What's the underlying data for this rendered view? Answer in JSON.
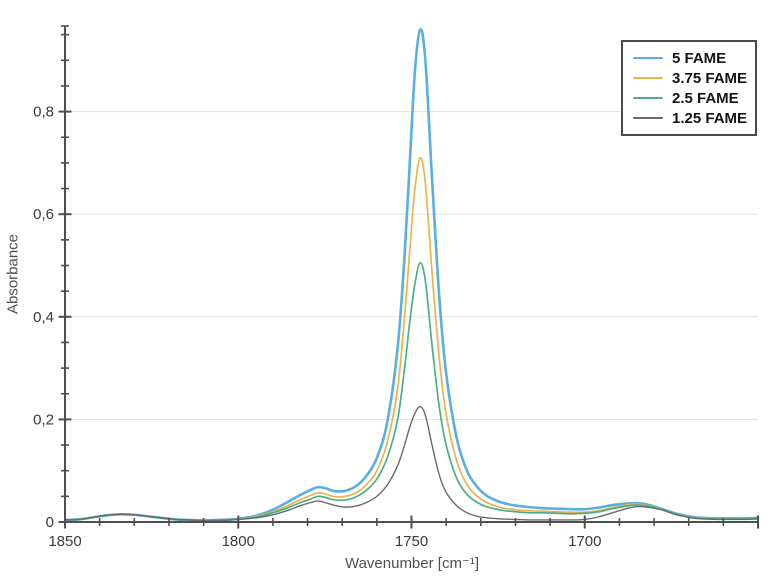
{
  "chart_data": {
    "type": "line",
    "title": "",
    "xlabel": "Wavenumber [cm⁻¹]",
    "ylabel": "Absorbance",
    "x_axis": {
      "min": 1650,
      "max": 1850,
      "reversed": true,
      "major_ticks": [
        1850,
        1800,
        1750,
        1700
      ],
      "major_tick_labels": [
        "1850",
        "1800",
        "1750",
        "1700"
      ],
      "minor_tick_step": 10,
      "end_tick": 1650
    },
    "y_axis": {
      "min": 0,
      "max": 0.965,
      "major_ticks": [
        0,
        0.2,
        0.4,
        0.6,
        0.8
      ],
      "major_tick_labels": [
        "0",
        "0,2",
        "0,4",
        "0,6",
        "0,8"
      ],
      "minor_tick_step": 0.05,
      "decimal_separator": ","
    },
    "grid": {
      "horizontal_major": true,
      "vertical": false,
      "color": "#e1e1e1"
    },
    "legend": {
      "position": "top-right",
      "bordered": true
    },
    "axis_color": "#4f4f4f",
    "background_color": "#ffffff",
    "x": [
      1850,
      1846,
      1842,
      1838,
      1834,
      1830,
      1826,
      1822,
      1818,
      1814,
      1810,
      1806,
      1802,
      1798,
      1794,
      1790,
      1786,
      1782,
      1779,
      1777,
      1775,
      1772,
      1769,
      1766,
      1763,
      1760,
      1757,
      1754,
      1752,
      1750.5,
      1749,
      1747.5,
      1746,
      1744,
      1742,
      1740,
      1737,
      1734,
      1731,
      1728,
      1724,
      1720,
      1716,
      1712,
      1708,
      1704,
      1700,
      1696,
      1692,
      1688,
      1685,
      1682,
      1678,
      1674,
      1670,
      1666,
      1662,
      1658,
      1654,
      1650
    ],
    "series": [
      {
        "name": "5 FAME",
        "color": "#5aafe0",
        "line_width": 2.6,
        "peak_value": 0.96,
        "peak_x": 1748,
        "values": [
          0.004,
          0.005,
          0.009,
          0.013,
          0.015,
          0.014,
          0.011,
          0.008,
          0.005,
          0.004,
          0.003,
          0.004,
          0.005,
          0.008,
          0.014,
          0.024,
          0.038,
          0.053,
          0.063,
          0.068,
          0.066,
          0.06,
          0.061,
          0.07,
          0.09,
          0.125,
          0.195,
          0.34,
          0.52,
          0.7,
          0.88,
          0.96,
          0.9,
          0.66,
          0.44,
          0.29,
          0.165,
          0.1,
          0.068,
          0.05,
          0.038,
          0.032,
          0.029,
          0.027,
          0.026,
          0.025,
          0.025,
          0.028,
          0.033,
          0.036,
          0.037,
          0.034,
          0.026,
          0.017,
          0.011,
          0.008,
          0.007,
          0.007,
          0.007,
          0.008
        ]
      },
      {
        "name": "3.75 FAME",
        "color": "#e8b450",
        "line_width": 1.7,
        "peak_value": 0.71,
        "peak_x": 1748,
        "values": [
          0.004,
          0.005,
          0.009,
          0.013,
          0.015,
          0.014,
          0.011,
          0.008,
          0.005,
          0.004,
          0.003,
          0.004,
          0.005,
          0.007,
          0.012,
          0.02,
          0.031,
          0.044,
          0.052,
          0.057,
          0.055,
          0.049,
          0.05,
          0.057,
          0.073,
          0.1,
          0.155,
          0.26,
          0.4,
          0.53,
          0.65,
          0.71,
          0.66,
          0.48,
          0.32,
          0.21,
          0.12,
          0.073,
          0.05,
          0.037,
          0.028,
          0.024,
          0.022,
          0.021,
          0.02,
          0.019,
          0.019,
          0.022,
          0.028,
          0.033,
          0.035,
          0.032,
          0.025,
          0.016,
          0.01,
          0.007,
          0.006,
          0.006,
          0.006,
          0.007
        ]
      },
      {
        "name": "2.5 FAME",
        "color": "#4daf85",
        "line_width": 1.7,
        "peak_value": 0.505,
        "peak_x": 1748,
        "values": [
          0.004,
          0.005,
          0.009,
          0.013,
          0.015,
          0.014,
          0.011,
          0.008,
          0.005,
          0.004,
          0.003,
          0.004,
          0.005,
          0.007,
          0.011,
          0.018,
          0.027,
          0.038,
          0.045,
          0.05,
          0.048,
          0.043,
          0.043,
          0.049,
          0.062,
          0.084,
          0.125,
          0.2,
          0.3,
          0.39,
          0.465,
          0.505,
          0.47,
          0.34,
          0.225,
          0.15,
          0.086,
          0.054,
          0.038,
          0.029,
          0.023,
          0.02,
          0.018,
          0.018,
          0.017,
          0.016,
          0.017,
          0.02,
          0.026,
          0.031,
          0.033,
          0.031,
          0.025,
          0.016,
          0.01,
          0.007,
          0.006,
          0.006,
          0.006,
          0.007
        ]
      },
      {
        "name": "1.25 FAME",
        "color": "#6a6a6a",
        "line_width": 1.4,
        "peak_value": 0.225,
        "peak_x": 1748,
        "values": [
          0.004,
          0.005,
          0.009,
          0.013,
          0.015,
          0.014,
          0.011,
          0.008,
          0.005,
          0.004,
          0.003,
          0.003,
          0.004,
          0.006,
          0.009,
          0.014,
          0.022,
          0.032,
          0.038,
          0.041,
          0.038,
          0.032,
          0.029,
          0.031,
          0.038,
          0.05,
          0.072,
          0.11,
          0.15,
          0.185,
          0.212,
          0.225,
          0.208,
          0.148,
          0.092,
          0.058,
          0.032,
          0.018,
          0.011,
          0.008,
          0.006,
          0.005,
          0.004,
          0.004,
          0.004,
          0.004,
          0.005,
          0.01,
          0.018,
          0.026,
          0.03,
          0.029,
          0.024,
          0.015,
          0.009,
          0.006,
          0.005,
          0.005,
          0.005,
          0.006
        ]
      }
    ]
  }
}
